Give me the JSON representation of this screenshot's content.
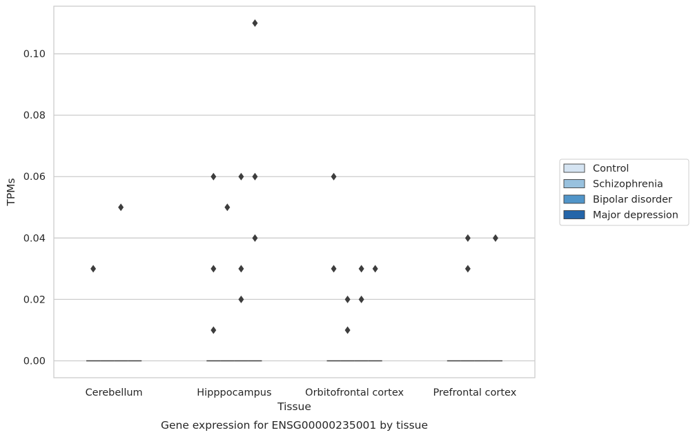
{
  "chart_data": {
    "type": "boxplot",
    "title": "",
    "caption": "Gene expression for ENSG00000235001 by tissue",
    "xlabel": "Tissue",
    "ylabel": "TPMs",
    "ylim": [
      -0.0055,
      0.1155
    ],
    "yticks": [
      0.0,
      0.02,
      0.04,
      0.06,
      0.08,
      0.1
    ],
    "ytick_labels": [
      "0.00",
      "0.02",
      "0.04",
      "0.06",
      "0.08",
      "0.10"
    ],
    "grid": "horizontal",
    "legend_placement": "right, outside",
    "categories": [
      "Cerebellum",
      "Hipppocampus",
      "Orbitofrontal cortex",
      "Prefrontal cortex"
    ],
    "series": [
      {
        "name": "Control",
        "color": "#d5e4f2",
        "median": [
          0,
          0,
          0,
          0
        ],
        "outliers": [
          [
            0.03
          ],
          [
            0.01,
            0.03,
            0.06
          ],
          [
            0.03,
            0.06
          ],
          []
        ]
      },
      {
        "name": "Schizophrenia",
        "color": "#98c1de",
        "median": [
          0,
          0,
          0,
          0
        ],
        "outliers": [
          [],
          [
            0.05
          ],
          [
            0.01,
            0.02
          ],
          [
            0.03,
            0.04
          ]
        ]
      },
      {
        "name": "Bipolar disorder",
        "color": "#5195c9",
        "median": [
          0,
          0,
          0,
          0
        ],
        "outliers": [
          [
            0.05
          ],
          [
            0.02,
            0.03,
            0.06
          ],
          [
            0.02,
            0.03
          ],
          []
        ]
      },
      {
        "name": "Major depression",
        "color": "#2465a9",
        "median": [
          0,
          0,
          0,
          0
        ],
        "outliers": [
          [],
          [
            0.04,
            0.06,
            0.11
          ],
          [
            0.03
          ],
          [
            0.04
          ]
        ]
      }
    ]
  }
}
